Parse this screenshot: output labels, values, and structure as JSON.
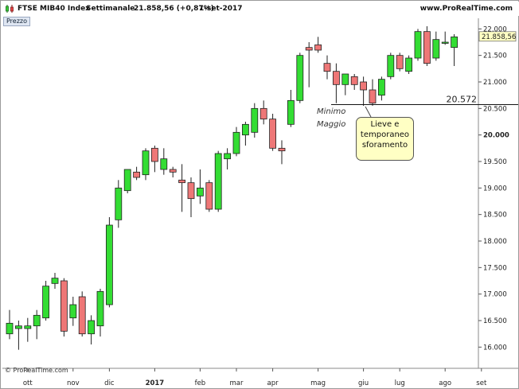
{
  "header": {
    "title": "FTSE MIB40 Index",
    "period": "Settimanale",
    "quote": "21.858,56 (+0,87%)",
    "date": "1-set-2017",
    "site": "www.ProRealTime.com"
  },
  "panel_label": "Prezzo",
  "footer_credit": "© ProRealTime.com",
  "colors": {
    "up": "#33dd33",
    "down": "#ee7777",
    "outline": "#222222",
    "last_price_bg": "#ffffc4"
  },
  "chart_data": {
    "type": "candlestick",
    "ylim": [
      15600,
      22200
    ],
    "y_ticks": [
      16000,
      16500,
      17000,
      17500,
      18000,
      18500,
      19000,
      19500,
      20000,
      20500,
      21000,
      21500,
      22000
    ],
    "y_tick_labels": [
      "16.000",
      "16.500",
      "17.000",
      "17.500",
      "18.000",
      "18.500",
      "19.000",
      "19.500",
      "20.000",
      "20.500",
      "21.000",
      "21.500",
      "22.000"
    ],
    "y_tick_bold": [
      "20.000"
    ],
    "x_labels": [
      {
        "label": "ott",
        "index": 2,
        "bold": false
      },
      {
        "label": "nov",
        "index": 7,
        "bold": false
      },
      {
        "label": "dic",
        "index": 11,
        "bold": false
      },
      {
        "label": "2017",
        "index": 16,
        "bold": true
      },
      {
        "label": "feb",
        "index": 21,
        "bold": false
      },
      {
        "label": "mar",
        "index": 25,
        "bold": false
      },
      {
        "label": "apr",
        "index": 29,
        "bold": false
      },
      {
        "label": "mag",
        "index": 34,
        "bold": false
      },
      {
        "label": "giu",
        "index": 39,
        "bold": false
      },
      {
        "label": "lug",
        "index": 43,
        "bold": false
      },
      {
        "label": "ago",
        "index": 48,
        "bold": false
      },
      {
        "label": "set",
        "index": 52,
        "bold": false
      }
    ],
    "candles": [
      {
        "o": 16250,
        "h": 16700,
        "l": 16150,
        "c": 16450
      },
      {
        "o": 16350,
        "h": 16500,
        "l": 15950,
        "c": 16400
      },
      {
        "o": 16350,
        "h": 16550,
        "l": 16100,
        "c": 16400
      },
      {
        "o": 16400,
        "h": 16700,
        "l": 16150,
        "c": 16600
      },
      {
        "o": 16550,
        "h": 17250,
        "l": 16500,
        "c": 17150
      },
      {
        "o": 17200,
        "h": 17400,
        "l": 17100,
        "c": 17300
      },
      {
        "o": 17250,
        "h": 17300,
        "l": 16200,
        "c": 16300
      },
      {
        "o": 16550,
        "h": 16950,
        "l": 16400,
        "c": 16800
      },
      {
        "o": 16950,
        "h": 17050,
        "l": 16200,
        "c": 16250
      },
      {
        "o": 16250,
        "h": 16600,
        "l": 16050,
        "c": 16500
      },
      {
        "o": 16400,
        "h": 17100,
        "l": 16200,
        "c": 17050
      },
      {
        "o": 16800,
        "h": 18450,
        "l": 16750,
        "c": 18300
      },
      {
        "o": 18400,
        "h": 19150,
        "l": 18250,
        "c": 19000
      },
      {
        "o": 18950,
        "h": 19350,
        "l": 18900,
        "c": 19350
      },
      {
        "o": 19300,
        "h": 19400,
        "l": 19150,
        "c": 19200
      },
      {
        "o": 19250,
        "h": 19750,
        "l": 19150,
        "c": 19700
      },
      {
        "o": 19750,
        "h": 19800,
        "l": 19300,
        "c": 19500
      },
      {
        "o": 19350,
        "h": 19750,
        "l": 19250,
        "c": 19550
      },
      {
        "o": 19350,
        "h": 19400,
        "l": 19200,
        "c": 19300
      },
      {
        "o": 19150,
        "h": 19450,
        "l": 18550,
        "c": 19100
      },
      {
        "o": 19100,
        "h": 19200,
        "l": 18450,
        "c": 18800
      },
      {
        "o": 18850,
        "h": 19350,
        "l": 18700,
        "c": 19000
      },
      {
        "o": 19100,
        "h": 19150,
        "l": 18550,
        "c": 18600
      },
      {
        "o": 18600,
        "h": 19700,
        "l": 18550,
        "c": 19650
      },
      {
        "o": 19550,
        "h": 19750,
        "l": 19350,
        "c": 19650
      },
      {
        "o": 19650,
        "h": 20150,
        "l": 19600,
        "c": 20050
      },
      {
        "o": 20000,
        "h": 20250,
        "l": 19800,
        "c": 20200
      },
      {
        "o": 20050,
        "h": 20600,
        "l": 19950,
        "c": 20500
      },
      {
        "o": 20500,
        "h": 20650,
        "l": 20200,
        "c": 20300
      },
      {
        "o": 20300,
        "h": 20400,
        "l": 19700,
        "c": 19750
      },
      {
        "o": 19750,
        "h": 19900,
        "l": 19450,
        "c": 19700
      },
      {
        "o": 20200,
        "h": 20850,
        "l": 20150,
        "c": 20650
      },
      {
        "o": 20650,
        "h": 21550,
        "l": 20600,
        "c": 21500
      },
      {
        "o": 21650,
        "h": 21750,
        "l": 20900,
        "c": 21600
      },
      {
        "o": 21700,
        "h": 21850,
        "l": 21550,
        "c": 21600
      },
      {
        "o": 21350,
        "h": 21500,
        "l": 21050,
        "c": 21200
      },
      {
        "o": 21200,
        "h": 21350,
        "l": 20600,
        "c": 20950
      },
      {
        "o": 20950,
        "h": 21150,
        "l": 20750,
        "c": 21150
      },
      {
        "o": 21100,
        "h": 21150,
        "l": 20850,
        "c": 20950
      },
      {
        "o": 21000,
        "h": 21100,
        "l": 20550,
        "c": 20850
      },
      {
        "o": 20850,
        "h": 21050,
        "l": 20550,
        "c": 20600
      },
      {
        "o": 20750,
        "h": 21100,
        "l": 20650,
        "c": 21050
      },
      {
        "o": 21100,
        "h": 21550,
        "l": 21050,
        "c": 21500
      },
      {
        "o": 21500,
        "h": 21550,
        "l": 21200,
        "c": 21250
      },
      {
        "o": 21200,
        "h": 21500,
        "l": 21150,
        "c": 21450
      },
      {
        "o": 21450,
        "h": 22000,
        "l": 21400,
        "c": 21950
      },
      {
        "o": 21950,
        "h": 22050,
        "l": 21300,
        "c": 21350
      },
      {
        "o": 21450,
        "h": 21950,
        "l": 21400,
        "c": 21800
      },
      {
        "o": 21750,
        "h": 21950,
        "l": 21700,
        "c": 21750
      },
      {
        "o": 21650,
        "h": 21900,
        "l": 21300,
        "c": 21850
      }
    ],
    "support_line": {
      "value": 20572,
      "label": "20.572"
    },
    "annotation_text_1": "Minimo",
    "annotation_text_2": "Maggio",
    "callout_lines": [
      "Lieve e",
      "temporaneo",
      "sforamento"
    ],
    "last_price": {
      "value": 21858.56,
      "label": "21.858,56"
    }
  }
}
